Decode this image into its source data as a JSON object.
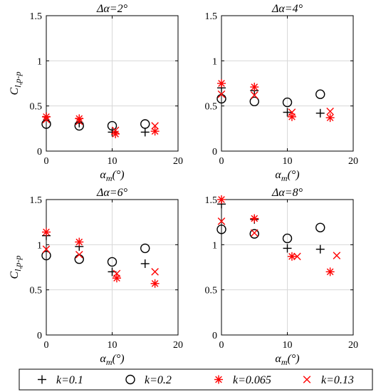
{
  "legend": [
    {
      "name": "k=0.1",
      "marker": "plus",
      "color": "#000000"
    },
    {
      "name": "k=0.2",
      "marker": "circle",
      "color": "#000000"
    },
    {
      "name": "k=0.065",
      "marker": "asterisk",
      "color": "#ff0000"
    },
    {
      "name": "k=0.13",
      "marker": "cross",
      "color": "#ff0000"
    }
  ],
  "chart_data": [
    {
      "type": "scatter",
      "title": "Δα=2°",
      "xlabel": "αm(°)",
      "ylabel": "Cl,p-p",
      "xlim": [
        0,
        20
      ],
      "ylim": [
        0,
        1.5
      ],
      "xticks": [
        0,
        10,
        20
      ],
      "yticks": [
        0,
        0.5,
        1,
        1.5
      ],
      "yticklabels": [
        "0",
        "0.5",
        "1",
        "1.5"
      ],
      "grid": true,
      "series": [
        {
          "name": "k=0.1",
          "x": [
            0,
            5,
            10,
            15
          ],
          "y": [
            0.38,
            0.31,
            0.21,
            0.21
          ]
        },
        {
          "name": "k=0.2",
          "x": [
            0,
            5,
            10,
            15
          ],
          "y": [
            0.3,
            0.28,
            0.28,
            0.3
          ]
        },
        {
          "name": "k=0.065",
          "x": [
            0,
            5,
            10.5,
            16.5
          ],
          "y": [
            0.38,
            0.36,
            0.19,
            0.22
          ]
        },
        {
          "name": "k=0.13",
          "x": [
            0,
            5,
            10.5,
            16.5
          ],
          "y": [
            0.35,
            0.33,
            0.23,
            0.28
          ]
        }
      ]
    },
    {
      "type": "scatter",
      "title": "Δα=4°",
      "xlabel": "αm(°)",
      "ylabel": "",
      "xlim": [
        0,
        20
      ],
      "ylim": [
        0,
        1.5
      ],
      "xticks": [
        0,
        10,
        20
      ],
      "yticks": [
        0,
        0.5,
        1,
        1.5
      ],
      "yticklabels": [
        "0",
        "0.5",
        "1",
        "1.5"
      ],
      "grid": true,
      "series": [
        {
          "name": "k=0.1",
          "x": [
            0,
            5,
            10,
            15
          ],
          "y": [
            0.7,
            0.67,
            0.43,
            0.42
          ]
        },
        {
          "name": "k=0.2",
          "x": [
            0,
            5,
            10,
            15
          ],
          "y": [
            0.58,
            0.55,
            0.54,
            0.63
          ]
        },
        {
          "name": "k=0.065",
          "x": [
            0,
            5,
            10.7,
            16.5
          ],
          "y": [
            0.75,
            0.71,
            0.38,
            0.37
          ]
        },
        {
          "name": "k=0.13",
          "x": [
            0,
            5,
            10.7,
            16.5
          ],
          "y": [
            0.63,
            0.62,
            0.43,
            0.44
          ]
        }
      ]
    },
    {
      "type": "scatter",
      "title": "Δα=6°",
      "xlabel": "αm(°)",
      "ylabel": "Cl,p-p",
      "xlim": [
        0,
        20
      ],
      "ylim": [
        0,
        1.5
      ],
      "xticks": [
        0,
        10,
        20
      ],
      "yticks": [
        0,
        0.5,
        1,
        1.5
      ],
      "yticklabels": [
        "0",
        "0.5",
        "1",
        "1.5"
      ],
      "grid": true,
      "series": [
        {
          "name": "k=0.1",
          "x": [
            0,
            5,
            10,
            15
          ],
          "y": [
            1.1,
            0.98,
            0.7,
            0.79
          ]
        },
        {
          "name": "k=0.2",
          "x": [
            0,
            5,
            10,
            15
          ],
          "y": [
            0.88,
            0.84,
            0.81,
            0.96
          ]
        },
        {
          "name": "k=0.065",
          "x": [
            0,
            5,
            10.7,
            16.5
          ],
          "y": [
            1.14,
            1.03,
            0.63,
            0.57
          ]
        },
        {
          "name": "k=0.13",
          "x": [
            0,
            5,
            10.7,
            16.5
          ],
          "y": [
            0.95,
            0.89,
            0.68,
            0.7
          ]
        }
      ]
    },
    {
      "type": "scatter",
      "title": "Δα=8°",
      "xlabel": "αm(°)",
      "ylabel": "",
      "xlim": [
        0,
        20
      ],
      "ylim": [
        0,
        1.5
      ],
      "xticks": [
        0,
        10,
        20
      ],
      "yticks": [
        0,
        0.5,
        1,
        1.5
      ],
      "yticklabels": [
        "0",
        "0.5",
        "1",
        "1.5"
      ],
      "grid": true,
      "series": [
        {
          "name": "k=0.1",
          "x": [
            0,
            5,
            10,
            15
          ],
          "y": [
            1.45,
            1.28,
            0.96,
            0.95
          ]
        },
        {
          "name": "k=0.2",
          "x": [
            0,
            5,
            10,
            15
          ],
          "y": [
            1.17,
            1.12,
            1.07,
            1.19
          ]
        },
        {
          "name": "k=0.065",
          "x": [
            0,
            5,
            10.7,
            16.5
          ],
          "y": [
            1.5,
            1.29,
            0.87,
            0.7
          ]
        },
        {
          "name": "k=0.13",
          "x": [
            0,
            5,
            11.5,
            17.5
          ],
          "y": [
            1.26,
            1.13,
            0.87,
            0.88
          ]
        }
      ]
    }
  ]
}
